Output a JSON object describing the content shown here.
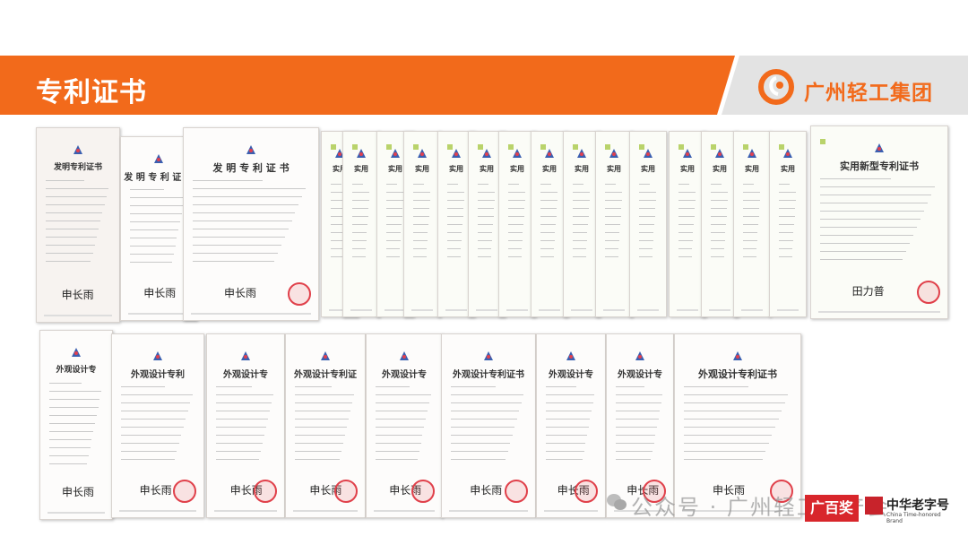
{
  "header": {
    "title": "专利证书",
    "brand": "广州轻工集团",
    "colors": {
      "orange": "#f26a1b",
      "gray": "#e3e3e3"
    }
  },
  "certificates": {
    "invention_title": "发明专利证书",
    "invention_title_spaced": "发 明 专 利 证 书",
    "utility_title": "实用新型专利证书",
    "utility_title_partial": "实用",
    "design_title": "外观设计专利证书",
    "design_title_partial_1": "外观设计专利",
    "design_title_partial_2": "外观设计专",
    "design_title_partial_3": "外观设计专利证",
    "signature_1": "申长雨",
    "signature_2": "田力普"
  },
  "watermark": {
    "text": "公众号 · 广州轻工品产会",
    "icon": "wechat-icon"
  },
  "badges": {
    "b1": "广百奖",
    "b2_main": "中华老字号",
    "b2_sub": "China Time-honored Brand"
  }
}
